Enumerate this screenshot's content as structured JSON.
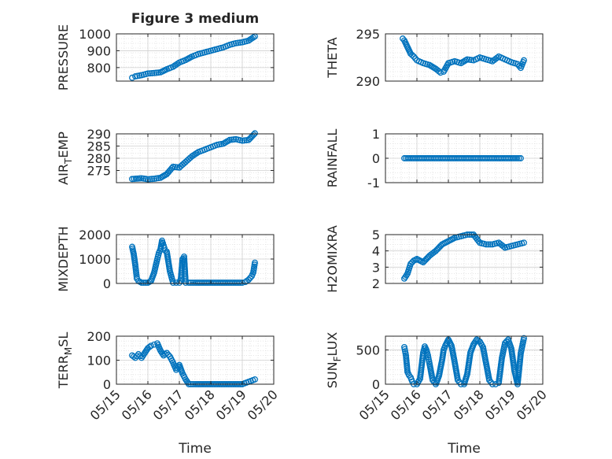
{
  "figure": {
    "title": "Figure 3 medium",
    "xlabel": "Time",
    "x_ticks": [
      "05/15",
      "05/16",
      "05/17",
      "05/18",
      "05/19",
      "05/20"
    ],
    "marker_color": "#0072bd",
    "grid_color": "#dfdfdf",
    "axis_color": "#262626"
  },
  "chart_data": [
    {
      "type": "scatter",
      "ylabel": "PRESSURE",
      "ylim": [
        720,
        1000
      ],
      "yticks": [
        800,
        900,
        1000
      ],
      "x_range": [
        "05/15",
        "05/20"
      ],
      "x": [
        0.5,
        0.6,
        0.8,
        1,
        1.2,
        1.4,
        1.6,
        1.8,
        2,
        2.2,
        2.4,
        2.6,
        2.8,
        3,
        3.2,
        3.4,
        3.6,
        3.8,
        4,
        4.2,
        4.4
      ],
      "y": [
        740,
        748,
        755,
        765,
        768,
        772,
        790,
        805,
        830,
        845,
        865,
        880,
        890,
        900,
        910,
        920,
        935,
        945,
        950,
        960,
        985
      ]
    },
    {
      "type": "scatter",
      "ylabel": "THETA",
      "ylim": [
        290,
        295
      ],
      "yticks": [
        290,
        295
      ],
      "x_range": [
        "05/15",
        "05/20"
      ],
      "x": [
        0.55,
        0.6,
        0.7,
        0.8,
        0.9,
        1,
        1.2,
        1.4,
        1.6,
        1.75,
        1.85,
        2,
        2.2,
        2.4,
        2.6,
        2.8,
        3,
        3.2,
        3.4,
        3.6,
        3.8,
        4,
        4.2,
        4.3,
        4.4
      ],
      "y": [
        294.5,
        294.3,
        293.6,
        292.9,
        292.6,
        292.2,
        291.9,
        291.7,
        291.3,
        290.9,
        291.0,
        291.9,
        292.1,
        291.9,
        292.3,
        292.2,
        292.5,
        292.3,
        292.1,
        292.6,
        292.3,
        292.0,
        291.8,
        291.4,
        292.2
      ]
    },
    {
      "type": "scatter",
      "ylabel": "AIR_TEMP",
      "ylim": [
        270,
        290
      ],
      "yticks": [
        275,
        280,
        285,
        290
      ],
      "x_range": [
        "05/15",
        "05/20"
      ],
      "x": [
        0.5,
        0.8,
        1,
        1.2,
        1.4,
        1.6,
        1.8,
        2,
        2.2,
        2.4,
        2.6,
        2.8,
        3,
        3.2,
        3.4,
        3.6,
        3.8,
        4,
        4.2,
        4.4
      ],
      "y": [
        271.5,
        271.8,
        271.4,
        271.6,
        272,
        273.5,
        276.5,
        276.2,
        278.5,
        280.8,
        282.5,
        283.5,
        284.5,
        285.5,
        286,
        287.5,
        287.8,
        287.2,
        287.5,
        290.2
      ]
    },
    {
      "type": "scatter",
      "ylabel": "RAINFALL",
      "ylim": [
        -1,
        1
      ],
      "yticks": [
        -1,
        0,
        1
      ],
      "x_range": [
        "05/15",
        "05/20"
      ],
      "x": [
        0.6,
        1,
        1.5,
        2,
        2.5,
        3,
        3.5,
        4,
        4.3
      ],
      "y": [
        0,
        0,
        0,
        0,
        0,
        0,
        0,
        0,
        0
      ]
    },
    {
      "type": "scatter",
      "ylabel": "MIXDEPTH",
      "ylim": [
        0,
        2000
      ],
      "yticks": [
        0,
        1000,
        2000
      ],
      "x_range": [
        "05/15",
        "05/20"
      ],
      "x": [
        0.5,
        0.55,
        0.6,
        0.65,
        0.7,
        0.8,
        1,
        1.1,
        1.2,
        1.3,
        1.35,
        1.4,
        1.45,
        1.5,
        1.55,
        1.6,
        1.7,
        1.8,
        1.9,
        2,
        2.05,
        2.1,
        2.15,
        2.2,
        2.3,
        2.5,
        3,
        3.5,
        4,
        4.1,
        4.2,
        4.3,
        4.35,
        4.4
      ],
      "y": [
        1500,
        1200,
        750,
        200,
        100,
        30,
        30,
        100,
        450,
        1000,
        1250,
        1400,
        1750,
        1550,
        1350,
        1300,
        500,
        30,
        30,
        30,
        200,
        1000,
        1100,
        30,
        30,
        30,
        30,
        30,
        30,
        60,
        150,
        300,
        450,
        850
      ]
    },
    {
      "type": "scatter",
      "ylabel": "H2OMIXRA",
      "ylim": [
        2,
        5
      ],
      "yticks": [
        2,
        3,
        4,
        5
      ],
      "x_range": [
        "05/15",
        "05/20"
      ],
      "x": [
        0.6,
        0.7,
        0.8,
        0.9,
        1,
        1.2,
        1.4,
        1.6,
        1.8,
        2,
        2.2,
        2.4,
        2.6,
        2.8,
        3,
        3.2,
        3.4,
        3.6,
        3.8,
        4,
        4.2,
        4.4
      ],
      "y": [
        2.3,
        2.6,
        3.2,
        3.4,
        3.5,
        3.3,
        3.7,
        4.0,
        4.4,
        4.6,
        4.8,
        4.9,
        5.0,
        5.0,
        4.5,
        4.4,
        4.4,
        4.5,
        4.2,
        4.3,
        4.4,
        4.5
      ]
    },
    {
      "type": "scatter",
      "ylabel": "TERR_MSL",
      "ylim": [
        0,
        200
      ],
      "yticks": [
        0,
        100,
        200
      ],
      "x_range": [
        "05/15",
        "05/20"
      ],
      "x": [
        0.5,
        0.6,
        0.7,
        0.8,
        0.9,
        1,
        1.1,
        1.2,
        1.3,
        1.4,
        1.5,
        1.6,
        1.7,
        1.8,
        1.9,
        2,
        2.1,
        2.2,
        2.3,
        2.5,
        3,
        3.5,
        4,
        4.2,
        4.4
      ],
      "y": [
        120,
        110,
        125,
        110,
        130,
        150,
        160,
        165,
        170,
        140,
        120,
        130,
        115,
        90,
        60,
        80,
        45,
        20,
        0,
        0,
        0,
        0,
        0,
        10,
        20
      ]
    },
    {
      "type": "scatter",
      "ylabel": "SUN_FLUX",
      "ylim": [
        0,
        700
      ],
      "yticks": [
        0,
        500
      ],
      "x_range": [
        "05/15",
        "05/20"
      ],
      "x": [
        0.6,
        0.65,
        0.7,
        0.75,
        0.8,
        0.85,
        0.9,
        1.0,
        1.1,
        1.2,
        1.25,
        1.3,
        1.35,
        1.4,
        1.5,
        1.6,
        1.7,
        1.8,
        1.85,
        1.9,
        2.0,
        2.1,
        2.2,
        2.3,
        2.4,
        2.5,
        2.6,
        2.7,
        2.8,
        2.9,
        3.0,
        3.1,
        3.2,
        3.3,
        3.4,
        3.5,
        3.6,
        3.7,
        3.8,
        3.9,
        4.0,
        4.1,
        4.2,
        4.3,
        4.4
      ],
      "y": [
        540,
        420,
        180,
        130,
        100,
        40,
        0,
        0,
        80,
        460,
        550,
        500,
        420,
        300,
        60,
        0,
        120,
        350,
        500,
        560,
        650,
        560,
        320,
        60,
        0,
        0,
        150,
        460,
        580,
        650,
        620,
        540,
        300,
        60,
        0,
        0,
        20,
        380,
        600,
        650,
        520,
        200,
        0,
        450,
        670
      ]
    }
  ]
}
